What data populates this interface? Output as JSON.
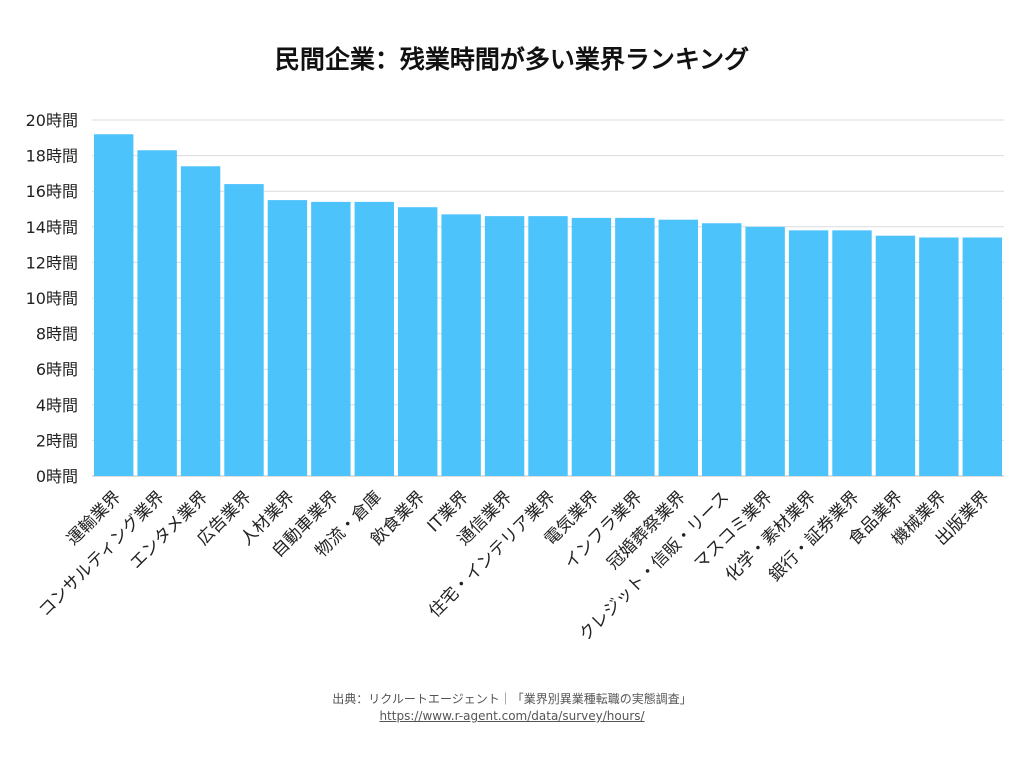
{
  "chart_data": {
    "type": "bar",
    "title": "民間企業：残業時間が多い業界ランキング",
    "unit_suffix": "時間",
    "ylim": [
      0,
      20
    ],
    "yticks": [
      0,
      2,
      4,
      6,
      8,
      10,
      12,
      14,
      16,
      18,
      20
    ],
    "ytick_labels": [
      "0時間",
      "2時間",
      "4時間",
      "6時間",
      "8時間",
      "10時間",
      "12時間",
      "14時間",
      "16時間",
      "18時間",
      "20時間"
    ],
    "grid": true,
    "bar_color": "#4dc3fc",
    "categories": [
      "運輸業界",
      "コンサルティング業界",
      "エンタメ業界",
      "広告業界",
      "人材業界",
      "自動車業界",
      "物流・倉庫",
      "飲食業界",
      "IT業界",
      "通信業界",
      "住宅・インテリア業界",
      "電気業界",
      "インフラ業界",
      "冠婚葬祭業界",
      "クレジット・信販・リース",
      "マスコミ業界",
      "化学・素材業界",
      "銀行・証券業界",
      "食品業界",
      "機械業界",
      "出版業界"
    ],
    "values": [
      19.2,
      18.3,
      17.4,
      16.4,
      15.5,
      15.4,
      15.4,
      15.1,
      14.7,
      14.6,
      14.6,
      14.5,
      14.5,
      14.4,
      14.2,
      14.0,
      13.8,
      13.8,
      13.5,
      13.4,
      13.4
    ]
  },
  "source": {
    "text": "出典：リクルートエージェント｜「業界別異業種転職の実態調査」",
    "url": "https://www.r-agent.com/data/survey/hours/"
  }
}
